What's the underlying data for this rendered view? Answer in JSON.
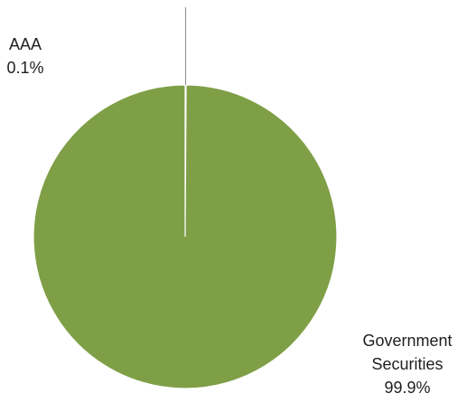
{
  "chart_data": {
    "type": "pie",
    "title": "",
    "categories": [
      "AAA",
      "Government Securities"
    ],
    "values": [
      0.1,
      99.9
    ],
    "slices": [
      {
        "label": "AAA",
        "value": 0.1,
        "value_label": "0.1%",
        "color": "#6e8f3a"
      },
      {
        "label": "Government Securities",
        "label_lines": [
          "Government",
          "Securities"
        ],
        "value": 99.9,
        "value_label": "99.9%",
        "color": "#7f9f47"
      }
    ],
    "legend": "none",
    "label_style": "outside with leader line"
  },
  "colors": {
    "slice_border": "#ffffff",
    "leader_line": "#8c8c8c",
    "label_text": "#1f1f1f"
  }
}
